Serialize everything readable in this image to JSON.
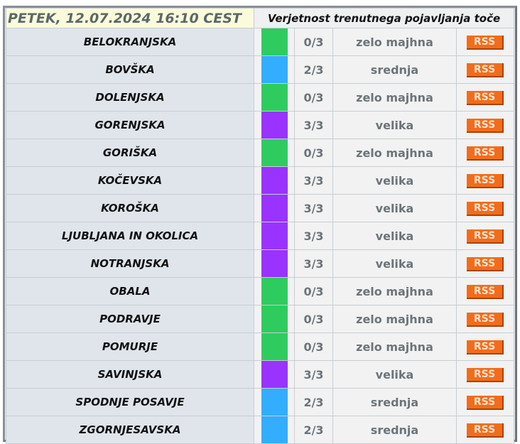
{
  "header": {
    "date": "PETEK, 12.07.2024 16:10 CEST",
    "title": "Verjetnost trenutnega pojavljanja toče"
  },
  "colors": {
    "zelo majhna": "#2ecc5e",
    "srednja": "#33adff",
    "velika": "#9a33ff"
  },
  "rss_label": "RSS",
  "rows": [
    {
      "region": "BELOKRANJSKA",
      "count": "0/3",
      "level": "zelo majhna"
    },
    {
      "region": "BOVŠKA",
      "count": "2/3",
      "level": "srednja"
    },
    {
      "region": "DOLENJSKA",
      "count": "0/3",
      "level": "zelo majhna"
    },
    {
      "region": "GORENJSKA",
      "count": "3/3",
      "level": "velika"
    },
    {
      "region": "GORIŠKA",
      "count": "0/3",
      "level": "zelo majhna"
    },
    {
      "region": "KOČEVSKA",
      "count": "3/3",
      "level": "velika"
    },
    {
      "region": "KOROŠKA",
      "count": "3/3",
      "level": "velika"
    },
    {
      "region": "LJUBLJANA IN OKOLICA",
      "count": "3/3",
      "level": "velika"
    },
    {
      "region": "NOTRANJSKA",
      "count": "3/3",
      "level": "velika"
    },
    {
      "region": "OBALA",
      "count": "0/3",
      "level": "zelo majhna"
    },
    {
      "region": "PODRAVJE",
      "count": "0/3",
      "level": "zelo majhna"
    },
    {
      "region": "POMURJE",
      "count": "0/3",
      "level": "zelo majhna"
    },
    {
      "region": "SAVINJSKA",
      "count": "3/3",
      "level": "velika"
    },
    {
      "region": "SPODNJE POSAVJE",
      "count": "2/3",
      "level": "srednja"
    },
    {
      "region": "ZGORNJESAVSKA",
      "count": "2/3",
      "level": "srednja"
    }
  ]
}
